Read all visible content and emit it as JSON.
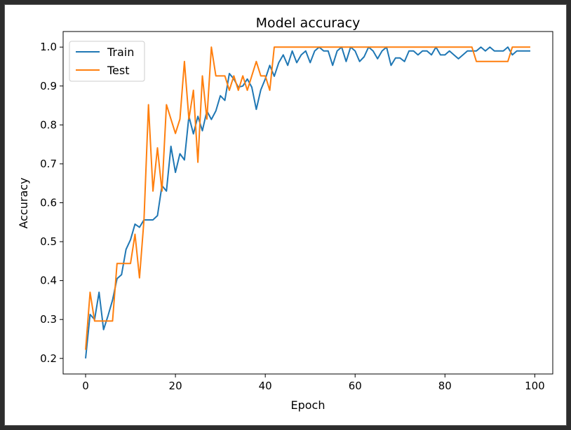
{
  "chart_data": {
    "type": "line",
    "title": "Model accuracy",
    "xlabel": "Epoch",
    "ylabel": "Accuracy",
    "xlim": [
      -5,
      104
    ],
    "ylim": [
      0.16,
      1.04
    ],
    "xticks": [
      0,
      20,
      40,
      60,
      80,
      100
    ],
    "yticks": [
      0.2,
      0.3,
      0.4,
      0.5,
      0.6,
      0.7,
      0.8,
      0.9,
      1.0
    ],
    "ytick_labels": [
      "0.2",
      "0.3",
      "0.4",
      "0.5",
      "0.6",
      "0.7",
      "0.8",
      "0.9",
      "1.0"
    ],
    "grid": false,
    "legend": "upper left",
    "series": [
      {
        "name": "Train",
        "color": "#1f77b4",
        "x": [
          0,
          1,
          2,
          3,
          4,
          5,
          6,
          7,
          8,
          9,
          10,
          11,
          12,
          13,
          14,
          15,
          16,
          17,
          18,
          19,
          20,
          21,
          22,
          23,
          24,
          25,
          26,
          27,
          28,
          29,
          30,
          31,
          32,
          33,
          34,
          35,
          36,
          37,
          38,
          39,
          40,
          41,
          42,
          43,
          44,
          45,
          46,
          47,
          48,
          49,
          50,
          51,
          52,
          53,
          54,
          55,
          56,
          57,
          58,
          59,
          60,
          61,
          62,
          63,
          64,
          65,
          66,
          67,
          68,
          69,
          70,
          71,
          72,
          73,
          74,
          75,
          76,
          77,
          78,
          79,
          80,
          81,
          82,
          83,
          84,
          85,
          86,
          87,
          88,
          89,
          90,
          91,
          92,
          93,
          94,
          95,
          96,
          97,
          98,
          99
        ],
        "values": [
          0.2,
          0.313,
          0.3,
          0.37,
          0.274,
          0.31,
          0.35,
          0.405,
          0.415,
          0.48,
          0.505,
          0.545,
          0.537,
          0.556,
          0.556,
          0.556,
          0.567,
          0.644,
          0.63,
          0.745,
          0.678,
          0.726,
          0.71,
          0.822,
          0.777,
          0.822,
          0.785,
          0.836,
          0.814,
          0.836,
          0.875,
          0.863,
          0.932,
          0.918,
          0.897,
          0.9,
          0.918,
          0.897,
          0.84,
          0.89,
          0.918,
          0.953,
          0.925,
          0.96,
          0.98,
          0.953,
          0.99,
          0.96,
          0.98,
          0.99,
          0.96,
          0.99,
          1.0,
          0.99,
          0.99,
          0.953,
          0.99,
          1.0,
          0.963,
          1.0,
          0.99,
          0.963,
          0.975,
          1.0,
          0.99,
          0.97,
          0.99,
          1.0,
          0.953,
          0.972,
          0.972,
          0.963,
          0.99,
          0.99,
          0.98,
          0.99,
          0.99,
          0.98,
          1.0,
          0.98,
          0.98,
          0.99,
          0.98,
          0.97,
          0.98,
          0.99,
          0.99,
          0.99,
          1.0,
          0.99,
          1.0,
          0.99,
          0.99,
          0.99,
          1.0,
          0.98,
          0.99,
          0.99,
          0.99,
          0.99
        ]
      },
      {
        "name": "Test",
        "color": "#ff7f0e",
        "x": [
          0,
          1,
          2,
          3,
          4,
          5,
          6,
          7,
          8,
          9,
          10,
          11,
          12,
          13,
          14,
          15,
          16,
          17,
          18,
          19,
          20,
          21,
          22,
          23,
          24,
          25,
          26,
          27,
          28,
          29,
          30,
          31,
          32,
          33,
          34,
          35,
          36,
          37,
          38,
          39,
          40,
          41,
          42,
          43,
          44,
          45,
          46,
          47,
          48,
          49,
          50,
          51,
          52,
          53,
          54,
          55,
          56,
          57,
          58,
          59,
          60,
          61,
          62,
          63,
          64,
          65,
          66,
          67,
          68,
          69,
          70,
          71,
          72,
          73,
          74,
          75,
          76,
          77,
          78,
          79,
          80,
          81,
          82,
          83,
          84,
          85,
          86,
          87,
          88,
          89,
          90,
          91,
          92,
          93,
          94,
          95,
          96,
          97,
          98,
          99
        ],
        "values": [
          0.222,
          0.37,
          0.296,
          0.296,
          0.296,
          0.296,
          0.296,
          0.444,
          0.444,
          0.444,
          0.444,
          0.519,
          0.407,
          0.556,
          0.852,
          0.63,
          0.741,
          0.63,
          0.852,
          0.815,
          0.778,
          0.815,
          0.963,
          0.815,
          0.889,
          0.704,
          0.926,
          0.815,
          1.0,
          0.926,
          0.926,
          0.926,
          0.889,
          0.926,
          0.889,
          0.926,
          0.889,
          0.926,
          0.963,
          0.926,
          0.926,
          0.889,
          1.0,
          1.0,
          1.0,
          1.0,
          1.0,
          1.0,
          1.0,
          1.0,
          1.0,
          1.0,
          1.0,
          1.0,
          1.0,
          1.0,
          1.0,
          1.0,
          1.0,
          1.0,
          1.0,
          1.0,
          1.0,
          1.0,
          1.0,
          1.0,
          1.0,
          1.0,
          1.0,
          1.0,
          1.0,
          1.0,
          1.0,
          1.0,
          1.0,
          1.0,
          1.0,
          1.0,
          1.0,
          1.0,
          1.0,
          1.0,
          1.0,
          1.0,
          1.0,
          1.0,
          1.0,
          0.963,
          0.963,
          0.963,
          0.963,
          0.963,
          0.963,
          0.963,
          0.963,
          1.0,
          1.0,
          1.0,
          1.0,
          1.0
        ]
      }
    ]
  }
}
